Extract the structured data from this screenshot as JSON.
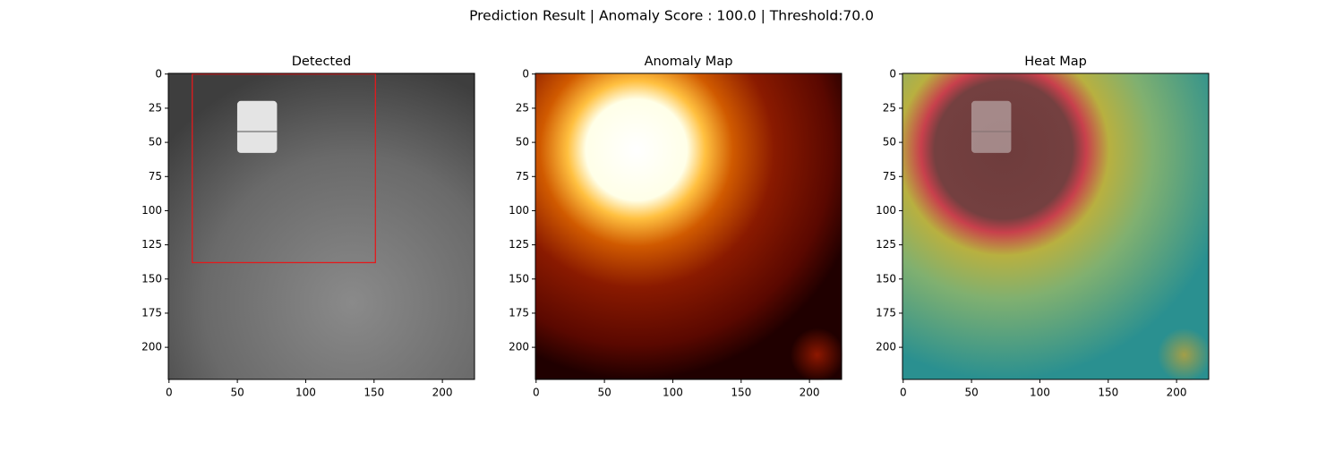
{
  "title": "Prediction Result | Anomaly Score : 100.0 | Threshold:70.0",
  "chart_data": [
    {
      "type": "image",
      "title": "Detected",
      "xlim": [
        -0.5,
        223.5
      ],
      "ylim": [
        223.5,
        -0.5
      ],
      "xticks": [
        0,
        50,
        100,
        150,
        200
      ],
      "yticks": [
        0,
        25,
        50,
        75,
        100,
        125,
        150,
        175,
        200
      ],
      "box": {
        "x": [
          17,
          151
        ],
        "y": [
          0,
          138
        ],
        "color": "#e31a1c"
      }
    },
    {
      "type": "image",
      "title": "Anomaly Map",
      "xlim": [
        -0.5,
        223.5
      ],
      "ylim": [
        223.5,
        -0.5
      ],
      "xticks": [
        0,
        50,
        100,
        150,
        200
      ],
      "yticks": [
        0,
        25,
        50,
        75,
        100,
        125,
        150,
        175,
        200
      ]
    },
    {
      "type": "image",
      "title": "Heat Map",
      "xlim": [
        -0.5,
        223.5
      ],
      "ylim": [
        223.5,
        -0.5
      ],
      "xticks": [
        0,
        50,
        100,
        150,
        200
      ],
      "yticks": [
        0,
        25,
        50,
        75,
        100,
        125,
        150,
        175,
        200
      ]
    }
  ]
}
